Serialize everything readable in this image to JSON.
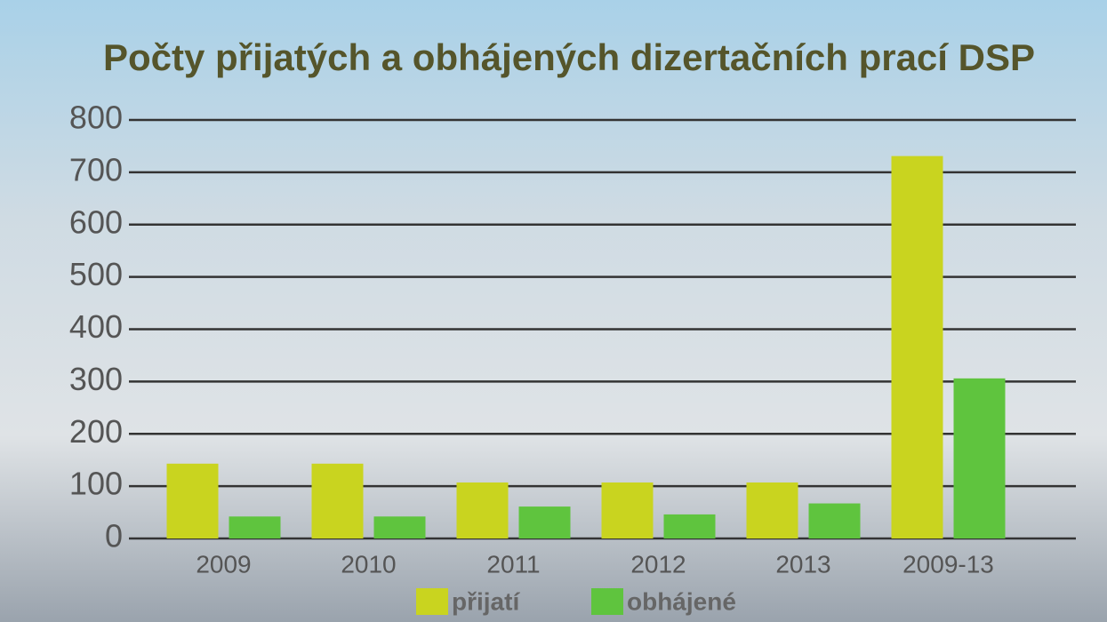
{
  "chart_data": {
    "type": "bar",
    "title": "Počty přijatých a obhájených dizertačních prací DSP",
    "categories": [
      "2009",
      "2010",
      "2011",
      "2012",
      "2013",
      "2009-13"
    ],
    "series": [
      {
        "name": "přijatí",
        "color": "#c9d41f",
        "values": [
          143,
          143,
          107,
          107,
          107,
          731
        ]
      },
      {
        "name": "obhájené",
        "color": "#5fc43e",
        "values": [
          42,
          42,
          61,
          46,
          67,
          306
        ]
      }
    ],
    "ylim": [
      0,
      800
    ],
    "yticks": [
      0,
      100,
      200,
      300,
      400,
      500,
      600,
      700,
      800
    ],
    "grid": true
  }
}
